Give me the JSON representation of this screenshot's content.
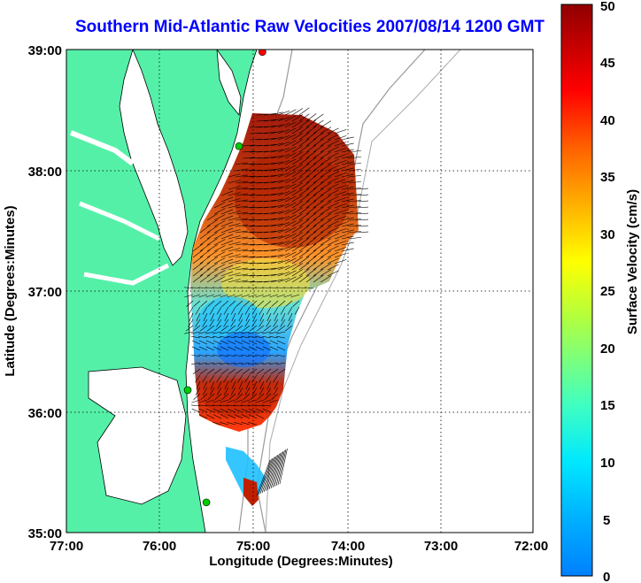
{
  "title": "Southern Mid-Atlantic Raw Velocities 2007/08/14 1200 GMT",
  "xlabel": "Longitude (Degrees:Minutes)",
  "ylabel": "Latitude (Degrees:Minutes)",
  "x_ticks": [
    "77:00",
    "76:00",
    "75:00",
    "74:00",
    "73:00",
    "72:00"
  ],
  "y_ticks": [
    "39:00",
    "38:00",
    "37:00",
    "36:00",
    "35:00"
  ],
  "colorbar": {
    "label": "Surface Velocity (cm/s)",
    "ticks": [
      "0",
      "5",
      "10",
      "15",
      "20",
      "25",
      "30",
      "35",
      "40",
      "45",
      "50"
    ],
    "range": [
      0,
      50
    ],
    "colormap": "jet"
  },
  "map": {
    "lon_range": [
      -77,
      -72
    ],
    "lat_range": [
      35,
      39
    ],
    "land_color": "#55f0a8",
    "bathymetry_color": "#999999",
    "grid": "dotted",
    "stations": [
      {
        "lon": -74.9,
        "lat": 38.98,
        "color": "#ff0000"
      },
      {
        "lon": -75.15,
        "lat": 38.2,
        "color": "#00cc00"
      },
      {
        "lon": -75.7,
        "lat": 36.18,
        "color": "#00cc00"
      },
      {
        "lon": -75.5,
        "lat": 35.25,
        "color": "#00cc00"
      }
    ]
  }
}
